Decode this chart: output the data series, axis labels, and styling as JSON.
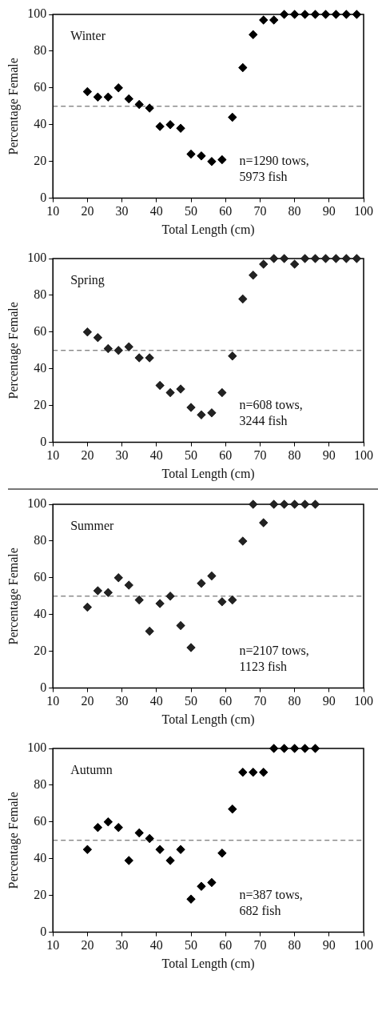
{
  "chart_data": [
    {
      "type": "scatter",
      "title": "Winter",
      "xlabel": "Total Length (cm)",
      "ylabel": "Percentage Female",
      "annotations": [
        "n=1290 tows,",
        "5973 fish"
      ],
      "marker": "diamond",
      "xlim": [
        10,
        100
      ],
      "xticks": [
        10,
        20,
        30,
        40,
        50,
        60,
        70,
        80,
        90,
        100
      ],
      "ylim": [
        0,
        100
      ],
      "yticks": [
        0,
        20,
        40,
        60,
        80,
        100
      ],
      "ref_lines": [
        {
          "axis": "y",
          "value": 50,
          "color": "#555555",
          "line_style": "dashed"
        }
      ],
      "x": [
        20,
        23,
        26,
        29,
        32,
        35,
        38,
        41,
        44,
        47,
        50,
        53,
        56,
        59,
        62,
        65,
        68,
        71,
        74,
        77,
        80,
        83,
        86,
        89,
        92,
        95,
        98
      ],
      "series": [
        {
          "color": "#000000",
          "values": [
            58,
            55,
            55,
            60,
            54,
            51,
            49,
            39,
            40,
            38,
            24,
            23,
            20,
            21,
            44,
            71,
            89,
            97,
            97,
            100,
            100,
            100,
            100,
            100,
            100,
            100,
            100
          ]
        }
      ]
    },
    {
      "type": "scatter",
      "title": "Spring",
      "xlabel": "Total Length (cm)",
      "ylabel": "Percentage Female",
      "annotations": [
        "n=608 tows,",
        "3244 fish"
      ],
      "marker": "diamond",
      "xlim": [
        10,
        100
      ],
      "xticks": [
        10,
        20,
        30,
        40,
        50,
        60,
        70,
        80,
        90,
        100
      ],
      "ylim": [
        0,
        100
      ],
      "yticks": [
        0,
        20,
        40,
        60,
        80,
        100
      ],
      "ref_lines": [
        {
          "axis": "y",
          "value": 50,
          "color": "#555555",
          "line_style": "dashed"
        }
      ],
      "x": [
        20,
        23,
        26,
        29,
        32,
        35,
        38,
        41,
        44,
        47,
        50,
        53,
        56,
        59,
        62,
        65,
        68,
        71,
        74,
        77,
        80,
        83,
        86,
        89,
        92,
        95,
        98
      ],
      "series": [
        {
          "color": "#222222",
          "values": [
            60,
            57,
            51,
            50,
            52,
            46,
            46,
            31,
            27,
            29,
            19,
            15,
            16,
            27,
            47,
            78,
            91,
            97,
            100,
            100,
            97,
            100,
            100,
            100,
            100,
            100,
            100
          ]
        }
      ]
    },
    {
      "type": "scatter",
      "title": "Summer",
      "xlabel": "Total Length (cm)",
      "ylabel": "Percentage Female",
      "annotations": [
        "n=2107 tows,",
        "1123 fish"
      ],
      "marker": "diamond",
      "xlim": [
        10,
        100
      ],
      "xticks": [
        10,
        20,
        30,
        40,
        50,
        60,
        70,
        80,
        90,
        100
      ],
      "ylim": [
        0,
        100
      ],
      "yticks": [
        0,
        20,
        40,
        60,
        80,
        100
      ],
      "ref_lines": [
        {
          "axis": "y",
          "value": 50,
          "color": "#555555",
          "line_style": "dashed"
        }
      ],
      "x": [
        20,
        23,
        26,
        29,
        32,
        35,
        38,
        41,
        44,
        47,
        50,
        53,
        56,
        59,
        62,
        65,
        68,
        71,
        74,
        77,
        80,
        83,
        86
      ],
      "series": [
        {
          "color": "#222222",
          "values": [
            44,
            53,
            52,
            60,
            56,
            48,
            31,
            46,
            50,
            34,
            22,
            57,
            61,
            47,
            48,
            80,
            100,
            90,
            100,
            100,
            100,
            100,
            100
          ]
        }
      ]
    },
    {
      "type": "scatter",
      "title": "Autumn",
      "xlabel": "Total Length (cm)",
      "ylabel": "Percentage Female",
      "annotations": [
        "n=387 tows,",
        "682 fish"
      ],
      "marker": "diamond",
      "xlim": [
        10,
        100
      ],
      "xticks": [
        10,
        20,
        30,
        40,
        50,
        60,
        70,
        80,
        90,
        100
      ],
      "ylim": [
        0,
        100
      ],
      "yticks": [
        0,
        20,
        40,
        60,
        80,
        100
      ],
      "ref_lines": [
        {
          "axis": "y",
          "value": 50,
          "color": "#555555",
          "line_style": "dashed"
        }
      ],
      "x": [
        20,
        23,
        26,
        29,
        32,
        35,
        38,
        41,
        44,
        47,
        50,
        53,
        56,
        59,
        62,
        65,
        68,
        71,
        74,
        77,
        80,
        83,
        86
      ],
      "series": [
        {
          "color": "#000000",
          "values": [
            45,
            57,
            60,
            57,
            39,
            54,
            51,
            45,
            39,
            45,
            18,
            25,
            27,
            43,
            67,
            87,
            87,
            87,
            100,
            100,
            100,
            100,
            100
          ]
        }
      ]
    }
  ]
}
